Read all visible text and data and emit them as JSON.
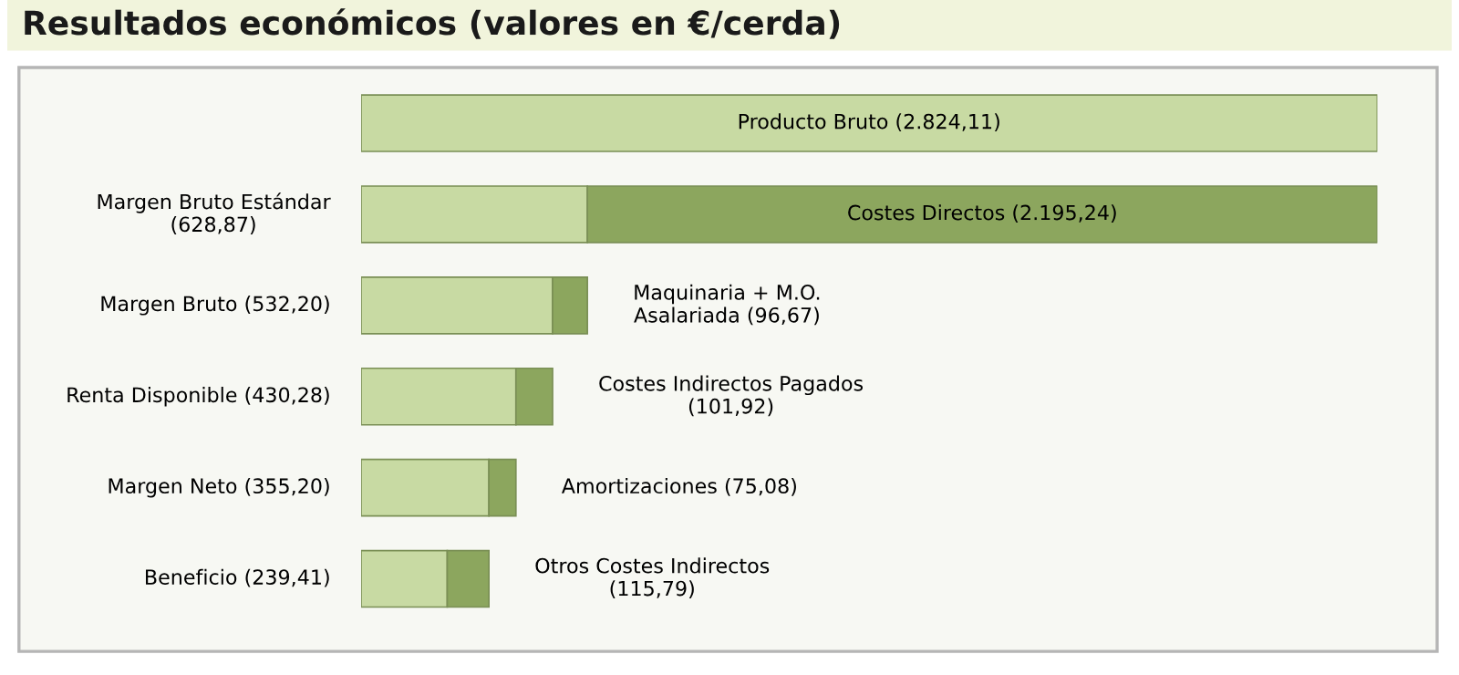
{
  "chart_data": {
    "type": "bar",
    "orientation": "horizontal",
    "stacked": true,
    "title": "Resultados económicos (valores en €/cerda)",
    "categories": [
      null,
      null,
      null,
      null,
      null,
      null
    ],
    "series": [
      {
        "color": "#c8daa3",
        "values": [
          2824.11,
          628.87,
          532.2,
          430.28,
          355.2,
          239.41
        ],
        "value_labels": [
          "Producto Bruto (2.824,11)",
          "Margen Bruto Estándar\n(628,87)",
          "Margen Bruto (532,20)",
          "Renta Disponible (430,28)",
          "Margen Neto (355,20)",
          "Beneficio (239,41)"
        ]
      },
      {
        "color": "#8ca65e",
        "values": [
          null,
          2195.24,
          96.67,
          101.92,
          75.08,
          115.79
        ],
        "value_labels": [
          null,
          "Costes Directos (2.195,24)",
          "Maquinaria + M.O.\nAsalariada (96,67)",
          "Costes Indirectos Pagados\n(101,92)",
          "Amortizaciones (75,08)",
          "Otros Costes Indirectos\n(115,79)"
        ]
      }
    ],
    "grid": false
  }
}
